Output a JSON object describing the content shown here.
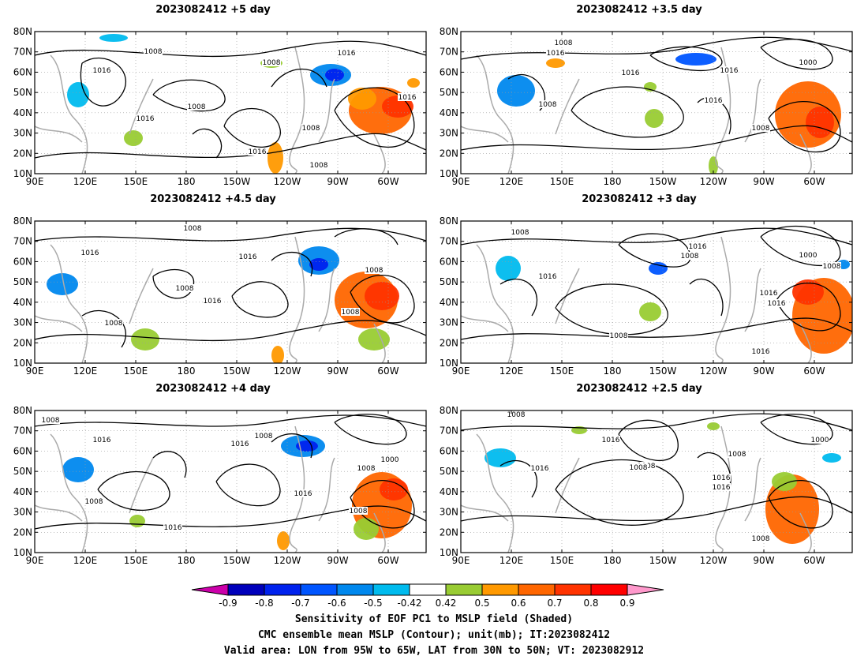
{
  "lat_labels": [
    "80N",
    "70N",
    "60N",
    "50N",
    "40N",
    "30N",
    "20N",
    "10N"
  ],
  "lon_labels": [
    "90E",
    "120E",
    "150E",
    "180",
    "150W",
    "120W",
    "90W",
    "60W"
  ],
  "panels": [
    {
      "id": "p1",
      "title": "2023082412 +5 day",
      "contour_labels": [
        "1008",
        "1016",
        "1008",
        "1016",
        "1008",
        "1016",
        "1008",
        "1016",
        "1016",
        "1008"
      ]
    },
    {
      "id": "p2",
      "title": "2023082412 +3.5 day",
      "contour_labels": [
        "1016",
        "1008",
        "1016",
        "1008",
        "1000",
        "1016",
        "1016",
        "1008"
      ]
    },
    {
      "id": "p3",
      "title": "2023082412 +4.5 day",
      "contour_labels": [
        "1008",
        "1016",
        "1016",
        "1008",
        "1016",
        "1008",
        "1008",
        "1008"
      ]
    },
    {
      "id": "p4",
      "title": "2023082412 +3 day",
      "contour_labels": [
        "1008",
        "1016",
        "1008",
        "1000",
        "1016",
        "1016",
        "1016",
        "1008",
        "1016",
        "1008"
      ]
    },
    {
      "id": "p5",
      "title": "2023082412 +4 day",
      "contour_labels": [
        "1008",
        "1016",
        "1008",
        "1016",
        "1000",
        "1008",
        "1016",
        "1008",
        "1016",
        "1008"
      ]
    },
    {
      "id": "p6",
      "title": "2023082412 +2.5 day",
      "contour_labels": [
        "1008",
        "1016",
        "1008",
        "1016",
        "1008",
        "1016",
        "1016",
        "1000",
        "1008",
        "1008"
      ]
    }
  ],
  "colorbar": {
    "tick_labels": [
      "-0.9",
      "-0.8",
      "-0.7",
      "-0.6",
      "-0.5",
      "-0.42",
      "0.42",
      "0.5",
      "0.6",
      "0.7",
      "0.8",
      "0.9"
    ],
    "colors": [
      "#cc00aa",
      "#0000bb",
      "#0022ee",
      "#0055ff",
      "#0088ee",
      "#00bbee",
      "#ffffff",
      "#99cc33",
      "#ff9900",
      "#ff6600",
      "#ff3300",
      "#ff0000",
      "#ff99cc"
    ]
  },
  "captions": [
    "Sensitivity of EOF PC1 to MSLP field (Shaded)",
    "CMC ensemble mean MSLP (Contour); unit(mb); IT:2023082412",
    "Valid area: LON from 95W to 65W, LAT from 30N to 50N; VT: 2023082912"
  ]
}
